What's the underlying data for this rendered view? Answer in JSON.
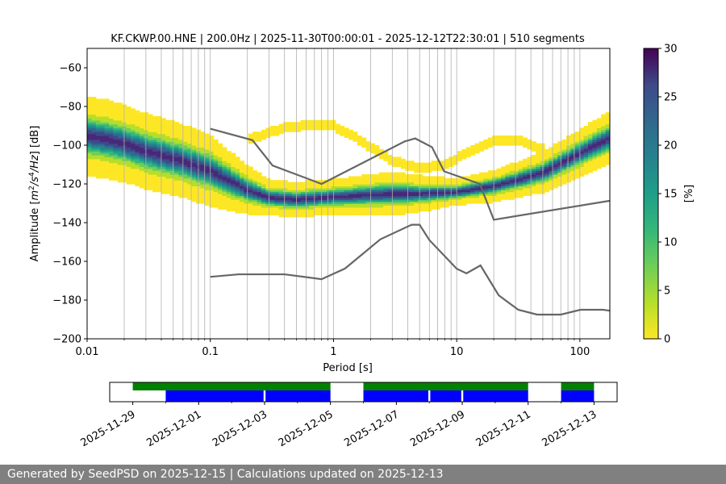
{
  "chart_data": [
    {
      "type": "heatmap",
      "subtype": "probabilistic power spectral density",
      "title": "KF.CKWP.00.HNE | 200.0Hz | 2025-11-30T00:00:01 - 2025-12-12T22:30:01 | 510 segments",
      "xlabel": "Period [s]",
      "ylabel_prefix": "Amplitude [",
      "ylabel_unit_m": "m",
      "ylabel_unit_s": "/s",
      "ylabel_unit_hz": "/Hz",
      "ylabel_exp2": "2",
      "ylabel_exp4": "4",
      "ylabel_suffix": "] [dB]",
      "xscale": "log",
      "xlim": [
        0.01,
        175
      ],
      "ylim": [
        -200,
        -50
      ],
      "x_ticks": [
        0.01,
        0.1,
        1,
        10,
        100
      ],
      "x_tick_labels": [
        "0.01",
        "0.1",
        "1",
        "10",
        "100"
      ],
      "y_ticks": [
        -200,
        -180,
        -160,
        -140,
        -120,
        -100,
        -80,
        -60
      ],
      "y_tick_labels": [
        "−200",
        "−180",
        "−160",
        "−140",
        "−120",
        "−100",
        "−80",
        "−60"
      ],
      "grid": "vertical minor",
      "colorbar": {
        "label": "[%]",
        "min": 0,
        "max": 30,
        "ticks": [
          0,
          5,
          10,
          15,
          20,
          25,
          30
        ],
        "tick_labels": [
          "0",
          "5",
          "10",
          "15",
          "20",
          "25",
          "30"
        ],
        "colormap": "viridis_r"
      },
      "psd_mode_db": [
        {
          "period": 0.01,
          "db": -95
        },
        {
          "period": 0.015,
          "db": -97
        },
        {
          "period": 0.02,
          "db": -99
        },
        {
          "period": 0.03,
          "db": -103
        },
        {
          "period": 0.04,
          "db": -105
        },
        {
          "period": 0.06,
          "db": -108
        },
        {
          "period": 0.08,
          "db": -111
        },
        {
          "period": 0.1,
          "db": -113
        },
        {
          "period": 0.15,
          "db": -119
        },
        {
          "period": 0.2,
          "db": -123
        },
        {
          "period": 0.3,
          "db": -127
        },
        {
          "period": 0.5,
          "db": -128
        },
        {
          "period": 0.8,
          "db": -127
        },
        {
          "period": 1.5,
          "db": -126
        },
        {
          "period": 3,
          "db": -125
        },
        {
          "period": 5,
          "db": -125
        },
        {
          "period": 10,
          "db": -124
        },
        {
          "period": 20,
          "db": -121
        },
        {
          "period": 30,
          "db": -118
        },
        {
          "period": 50,
          "db": -114
        },
        {
          "period": 100,
          "db": -104
        },
        {
          "period": 175,
          "db": -96
        }
      ],
      "psd_spread_db": [
        {
          "period": 0.01,
          "db": 9
        },
        {
          "period": 0.1,
          "db": 8
        },
        {
          "period": 0.3,
          "db": 4
        },
        {
          "period": 1,
          "db": 4
        },
        {
          "period": 3,
          "db": 5
        },
        {
          "period": 10,
          "db": 3
        },
        {
          "period": 30,
          "db": 4
        },
        {
          "period": 175,
          "db": 6
        }
      ],
      "psd_upper_branch_db": [
        {
          "period": 0.2,
          "db": -97
        },
        {
          "period": 0.4,
          "db": -91
        },
        {
          "period": 0.7,
          "db": -89
        },
        {
          "period": 1,
          "db": -90
        },
        {
          "period": 1.5,
          "db": -96
        },
        {
          "period": 3,
          "db": -108
        },
        {
          "period": 5,
          "db": -112
        },
        {
          "period": 8,
          "db": -110
        },
        {
          "period": 12,
          "db": -104
        },
        {
          "period": 20,
          "db": -98
        },
        {
          "period": 30,
          "db": -97
        },
        {
          "period": 50,
          "db": -102
        }
      ],
      "nhnm": [
        {
          "period": 0.1,
          "db": -91.5
        },
        {
          "period": 0.22,
          "db": -97.4
        },
        {
          "period": 0.32,
          "db": -110.5
        },
        {
          "period": 0.8,
          "db": -120
        },
        {
          "period": 3.8,
          "db": -98
        },
        {
          "period": 4.6,
          "db": -96.5
        },
        {
          "period": 6.3,
          "db": -101
        },
        {
          "period": 7.9,
          "db": -113.5
        },
        {
          "period": 15.4,
          "db": -120
        },
        {
          "period": 20,
          "db": -138.5
        },
        {
          "period": 175,
          "db": -128.7
        }
      ],
      "nlnm": [
        {
          "period": 0.1,
          "db": -168
        },
        {
          "period": 0.17,
          "db": -166.7
        },
        {
          "period": 0.4,
          "db": -166.7
        },
        {
          "period": 0.8,
          "db": -169.2
        },
        {
          "period": 1.24,
          "db": -163.7
        },
        {
          "period": 2.4,
          "db": -148.6
        },
        {
          "period": 4.3,
          "db": -141.1
        },
        {
          "period": 5,
          "db": -141.1
        },
        {
          "period": 6,
          "db": -149
        },
        {
          "period": 10,
          "db": -163.8
        },
        {
          "period": 12,
          "db": -166.2
        },
        {
          "period": 15.6,
          "db": -162.1
        },
        {
          "period": 21.9,
          "db": -177.5
        },
        {
          "period": 31.6,
          "db": -185
        },
        {
          "period": 45,
          "db": -187.5
        },
        {
          "period": 70,
          "db": -187.5
        },
        {
          "period": 101,
          "db": -185
        },
        {
          "period": 154,
          "db": -185
        },
        {
          "period": 175,
          "db": -185.5
        }
      ]
    },
    {
      "type": "timeline",
      "x_tick_labels": [
        "2025-11-29",
        "2025-12-01",
        "2025-12-03",
        "2025-12-05",
        "2025-12-07",
        "2025-12-09",
        "2025-12-11",
        "2025-12-13"
      ],
      "x_tick_days": [
        0,
        2,
        4,
        6,
        8,
        10,
        12,
        14
      ],
      "xlim_days": [
        -0.7,
        14.7
      ],
      "data_availability": [
        {
          "start": 0.0,
          "end": 6.0
        },
        {
          "start": 7.0,
          "end": 12.0
        },
        {
          "start": 13.0,
          "end": 14.0
        }
      ],
      "psd_segments": [
        {
          "start": 1.0,
          "end": 3.97
        },
        {
          "start": 4.03,
          "end": 6.0
        },
        {
          "start": 7.0,
          "end": 8.97
        },
        {
          "start": 9.03,
          "end": 9.97
        },
        {
          "start": 10.03,
          "end": 12.0
        },
        {
          "start": 13.0,
          "end": 14.0
        }
      ],
      "colors": {
        "availability": "#008000",
        "segments": "#0000ff"
      }
    }
  ],
  "colors": {
    "noise_model": "#666666",
    "grid": "#b0b0b0",
    "footer_bg": "#808080"
  },
  "footer": {
    "text": "Generated by SeedPSD on 2025-12-15 | Calculations updated on 2025-12-13"
  }
}
